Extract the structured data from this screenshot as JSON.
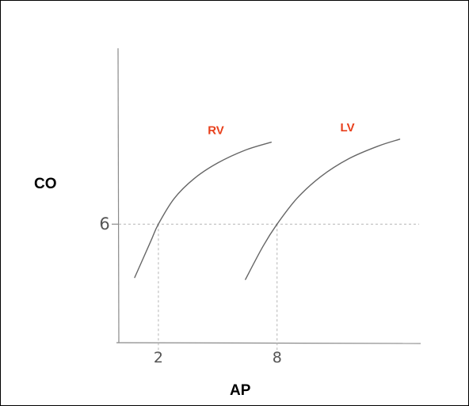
{
  "chart_data": {
    "type": "line",
    "xlabel": "AP",
    "ylabel": "CO",
    "x_ticks": [
      "2",
      "8"
    ],
    "y_ticks": [
      "6"
    ],
    "series": [
      {
        "name": "RV",
        "color": "#e8401c",
        "x": [
          0.8,
          1.6,
          2.0,
          2.8,
          3.8,
          5.0,
          6.4,
          7.7
        ],
        "y": [
          3.3,
          5.1,
          6.0,
          7.3,
          8.3,
          9.1,
          9.75,
          10.15
        ]
      },
      {
        "name": "LV",
        "color": "#e8401c",
        "x": [
          6.4,
          7.3,
          8.0,
          9.0,
          10.2,
          11.6,
          13.1,
          14.2
        ],
        "y": [
          3.2,
          4.9,
          6.0,
          7.3,
          8.4,
          9.3,
          9.95,
          10.3
        ]
      }
    ],
    "reference_lines": [
      {
        "axis": "y",
        "value": 6
      },
      {
        "axis": "x",
        "value": 2
      },
      {
        "axis": "x",
        "value": 8
      }
    ],
    "xlim": [
      0,
      15.5
    ],
    "ylim": [
      0,
      12.3
    ],
    "grid": false
  }
}
